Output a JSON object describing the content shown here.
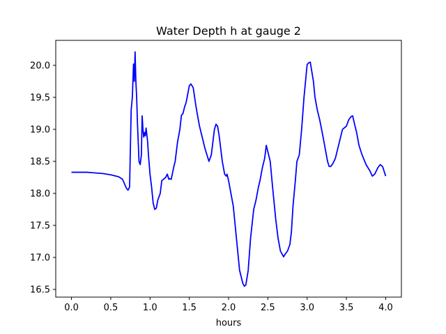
{
  "chart_data": {
    "type": "line",
    "title": "Water Depth h at gauge 2",
    "xlabel": "hours",
    "ylabel": "",
    "xlim": [
      -0.2,
      4.2
    ],
    "ylim": [
      16.38,
      20.39
    ],
    "xticks": [
      "0.0",
      "0.5",
      "1.0",
      "1.5",
      "2.0",
      "2.5",
      "3.0",
      "3.5",
      "4.0"
    ],
    "yticks": [
      "16.5",
      "17.0",
      "17.5",
      "18.0",
      "18.5",
      "19.0",
      "19.5",
      "20.0"
    ],
    "grid": false,
    "series": [
      {
        "color": "#0000ff",
        "x": [
          0.0,
          0.1,
          0.2,
          0.3,
          0.4,
          0.5,
          0.6,
          0.65,
          0.7,
          0.72,
          0.74,
          0.76,
          0.775,
          0.79,
          0.8,
          0.81,
          0.82,
          0.83,
          0.84,
          0.85,
          0.86,
          0.875,
          0.89,
          0.9,
          0.91,
          0.92,
          0.93,
          0.94,
          0.95,
          0.97,
          0.98,
          1.0,
          1.02,
          1.04,
          1.06,
          1.08,
          1.1,
          1.13,
          1.15,
          1.18,
          1.2,
          1.22,
          1.24,
          1.25,
          1.27,
          1.3,
          1.32,
          1.35,
          1.38,
          1.4,
          1.42,
          1.44,
          1.46,
          1.48,
          1.5,
          1.52,
          1.55,
          1.58,
          1.6,
          1.63,
          1.66,
          1.7,
          1.75,
          1.78,
          1.8,
          1.82,
          1.84,
          1.86,
          1.88,
          1.9,
          1.92,
          1.95,
          1.97,
          1.98,
          2.0,
          2.03,
          2.06,
          2.1,
          2.14,
          2.18,
          2.2,
          2.22,
          2.25,
          2.28,
          2.32,
          2.35,
          2.38,
          2.4,
          2.43,
          2.46,
          2.48,
          2.5,
          2.53,
          2.56,
          2.6,
          2.63,
          2.66,
          2.7,
          2.72,
          2.75,
          2.78,
          2.8,
          2.82,
          2.85,
          2.87,
          2.9,
          2.93,
          2.96,
          3.0,
          3.02,
          3.04,
          3.06,
          3.08,
          3.1,
          3.13,
          3.16,
          3.2,
          3.23,
          3.26,
          3.28,
          3.3,
          3.33,
          3.36,
          3.4,
          3.45,
          3.5,
          3.53,
          3.56,
          3.58,
          3.6,
          3.63,
          3.66,
          3.7,
          3.75,
          3.8,
          3.83,
          3.86,
          3.9,
          3.93,
          3.96,
          4.0
        ],
        "y": [
          18.33,
          18.33,
          18.33,
          18.32,
          18.31,
          18.29,
          18.26,
          18.22,
          18.08,
          18.05,
          18.1,
          19.3,
          19.5,
          20.02,
          19.75,
          20.21,
          19.75,
          19.5,
          19.1,
          18.8,
          18.5,
          18.45,
          18.6,
          19.21,
          19.0,
          18.88,
          18.95,
          18.9,
          19.02,
          18.8,
          18.6,
          18.3,
          18.1,
          17.85,
          17.75,
          17.77,
          17.9,
          18.0,
          18.2,
          18.23,
          18.25,
          18.3,
          18.22,
          18.23,
          18.22,
          18.4,
          18.5,
          18.8,
          19.0,
          19.22,
          19.25,
          19.35,
          19.42,
          19.55,
          19.68,
          19.71,
          19.65,
          19.4,
          19.25,
          19.05,
          18.9,
          18.7,
          18.5,
          18.6,
          18.8,
          19.0,
          19.08,
          19.05,
          18.9,
          18.7,
          18.5,
          18.3,
          18.27,
          18.3,
          18.2,
          18.0,
          17.8,
          17.3,
          16.8,
          16.6,
          16.55,
          16.57,
          16.8,
          17.3,
          17.75,
          17.9,
          18.1,
          18.2,
          18.4,
          18.55,
          18.75,
          18.65,
          18.5,
          18.1,
          17.6,
          17.3,
          17.1,
          17.01,
          17.05,
          17.1,
          17.2,
          17.4,
          17.8,
          18.2,
          18.5,
          18.6,
          19.0,
          19.5,
          20.01,
          20.04,
          20.05,
          19.9,
          19.75,
          19.5,
          19.3,
          19.15,
          18.9,
          18.7,
          18.5,
          18.42,
          18.42,
          18.47,
          18.55,
          18.75,
          19.0,
          19.05,
          19.15,
          19.2,
          19.21,
          19.1,
          18.95,
          18.75,
          18.6,
          18.45,
          18.35,
          18.27,
          18.3,
          18.4,
          18.45,
          18.42,
          18.27
        ]
      }
    ]
  }
}
